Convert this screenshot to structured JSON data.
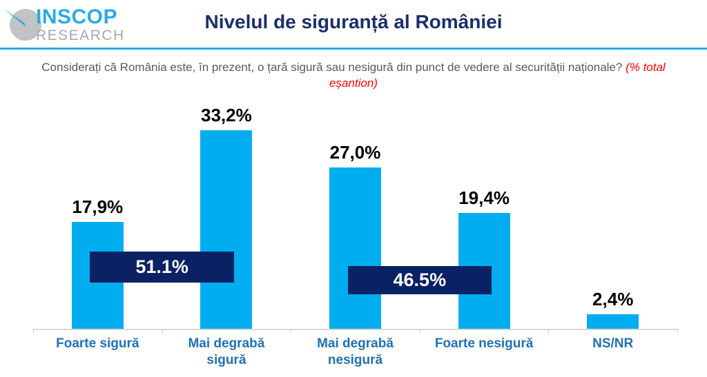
{
  "header": {
    "logo": {
      "line1": "INSCOP",
      "line2": "RESEARCH"
    },
    "title": "Nivelul de siguranță al României"
  },
  "subtitle": {
    "question": "Considerați că România este, în prezent, o țară sigură sau nesigură din punct de vedere al securității naționale?",
    "note": "(% total eșantion)"
  },
  "chart_data": {
    "type": "bar",
    "title": "Nivelul de siguranță al României",
    "categories": [
      "Foarte sigură",
      "Mai degrabă sigură",
      "Mai degrabă nesigură",
      "Foarte nesigură",
      "NS/NR"
    ],
    "values": [
      17.9,
      33.2,
      27.0,
      19.4,
      2.4
    ],
    "value_labels": [
      "17,9%",
      "33,2%",
      "27,0%",
      "19,4%",
      "2,4%"
    ],
    "group_annotations": [
      {
        "label": "51.1%",
        "spans": [
          0,
          1
        ]
      },
      {
        "label": "46.5%",
        "spans": [
          2,
          3
        ]
      }
    ],
    "xlabel": "",
    "ylabel": "",
    "ylim": [
      0,
      38.8
    ],
    "grid": false,
    "legend": "none",
    "colors": {
      "bar": "#00AEEF",
      "annotation_bg": "#0A2264",
      "annotation_text": "#FFFFFF",
      "value_label": "#000000",
      "category_label": "#2071B2",
      "title": "#1B2E68",
      "subtitle": "#595959",
      "subtitle_note": "#FF0000",
      "divider": "#29ABE2",
      "axis_line": "#D8D8D8",
      "logo_blue": "#29ABE2",
      "logo_gray": "#A6A8AB"
    }
  }
}
